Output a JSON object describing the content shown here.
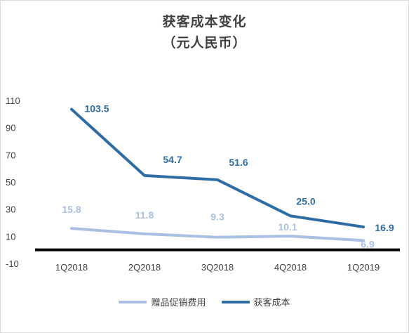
{
  "chart_data": {
    "type": "line",
    "title_line1": "获客成本变化",
    "title_line2": "（元人民币）",
    "categories": [
      "1Q2018",
      "2Q2018",
      "3Q2018",
      "4Q2018",
      "1Q2019"
    ],
    "y_ticks": [
      "110",
      "90",
      "70",
      "50",
      "30",
      "10",
      "-10"
    ],
    "ylim": [
      -10,
      110
    ],
    "series": [
      {
        "name": "赠品促销费用",
        "color": "#a9bfe3",
        "values": [
          15.8,
          11.8,
          9.3,
          10.1,
          6.9
        ],
        "labels": [
          "15.8",
          "11.8",
          "9.3",
          "10.1",
          "6.9"
        ]
      },
      {
        "name": "获客成本",
        "color": "#2e6ca4",
        "values": [
          103.5,
          54.7,
          51.6,
          25.0,
          16.9
        ],
        "labels": [
          "103.5",
          "54.7",
          "51.6",
          "25.0",
          "16.9"
        ]
      }
    ],
    "legend_position": "bottom",
    "grid": false
  }
}
